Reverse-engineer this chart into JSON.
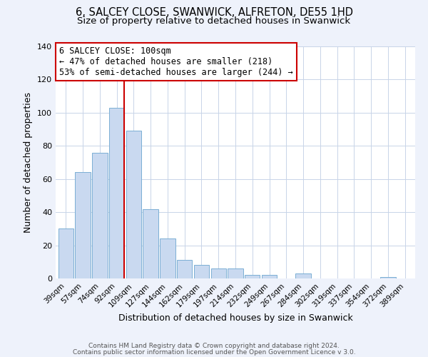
{
  "title": "6, SALCEY CLOSE, SWANWICK, ALFRETON, DE55 1HD",
  "subtitle": "Size of property relative to detached houses in Swanwick",
  "xlabel": "Distribution of detached houses by size in Swanwick",
  "ylabel": "Number of detached properties",
  "categories": [
    "39sqm",
    "57sqm",
    "74sqm",
    "92sqm",
    "109sqm",
    "127sqm",
    "144sqm",
    "162sqm",
    "179sqm",
    "197sqm",
    "214sqm",
    "232sqm",
    "249sqm",
    "267sqm",
    "284sqm",
    "302sqm",
    "319sqm",
    "337sqm",
    "354sqm",
    "372sqm",
    "389sqm"
  ],
  "values": [
    30,
    64,
    76,
    103,
    89,
    42,
    24,
    11,
    8,
    6,
    6,
    2,
    2,
    0,
    3,
    0,
    0,
    0,
    0,
    1,
    0
  ],
  "bar_color": "#c9d9f0",
  "bar_edge_color": "#7bafd4",
  "redline_index": 3,
  "annotation_title": "6 SALCEY CLOSE: 100sqm",
  "annotation_line1": "← 47% of detached houses are smaller (218)",
  "annotation_line2": "53% of semi-detached houses are larger (244) →",
  "ylim": [
    0,
    140
  ],
  "yticks": [
    0,
    20,
    40,
    60,
    80,
    100,
    120,
    140
  ],
  "footer_line1": "Contains HM Land Registry data © Crown copyright and database right 2024.",
  "footer_line2": "Contains public sector information licensed under the Open Government Licence v 3.0.",
  "background_color": "#eef2fb",
  "plot_background_color": "#ffffff",
  "grid_color": "#c8d4e8",
  "title_fontsize": 10.5,
  "subtitle_fontsize": 9.5,
  "annotation_box_edge_color": "#cc0000",
  "redline_color": "#cc0000",
  "footer_fontsize": 6.5
}
